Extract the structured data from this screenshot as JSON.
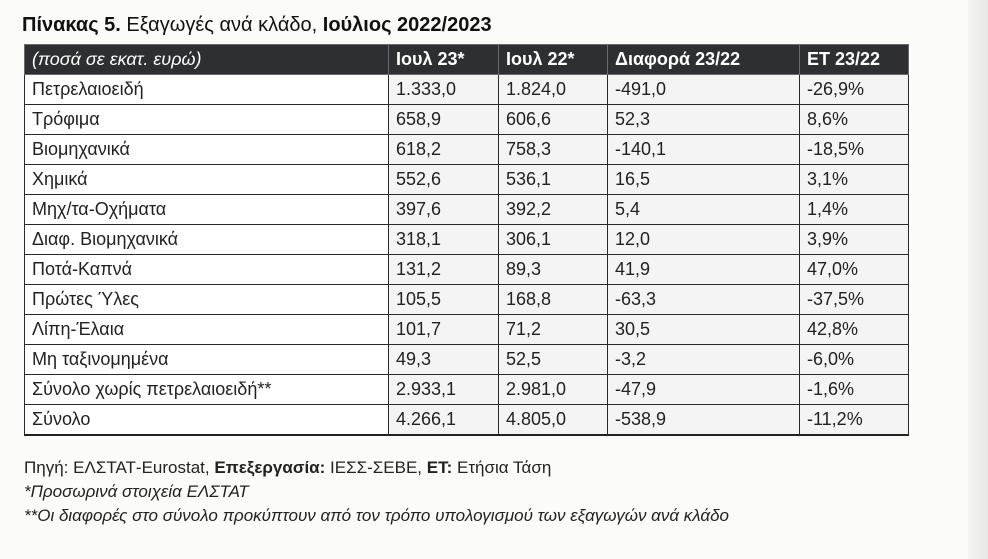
{
  "title": {
    "bold1": "Πίνακας 5.",
    "normal": " Εξαγωγές ανά κλάδο, ",
    "bold2": "Ιούλιος 2022/2023"
  },
  "table": {
    "headers": [
      "(ποσά σε εκατ. ευρώ)",
      "Ιουλ 23*",
      "Ιουλ 22*",
      "Διαφορά 23/22",
      "ΕΤ 23/22"
    ],
    "rows": [
      [
        "Πετρελαιοειδή",
        "1.333,0",
        "1.824,0",
        "-491,0",
        "-26,9%"
      ],
      [
        "Τρόφιμα",
        "658,9",
        "606,6",
        "52,3",
        "8,6%"
      ],
      [
        "Βιομηχανικά",
        "618,2",
        "758,3",
        "-140,1",
        "-18,5%"
      ],
      [
        "Χημικά",
        "552,6",
        "536,1",
        "16,5",
        "3,1%"
      ],
      [
        "Μηχ/τα-Οχήματα",
        "397,6",
        "392,2",
        "5,4",
        "1,4%"
      ],
      [
        "Διαφ. Βιομηχανικά",
        "318,1",
        "306,1",
        "12,0",
        "3,9%"
      ],
      [
        "Ποτά-Καπνά",
        "131,2",
        "89,3",
        "41,9",
        "47,0%"
      ],
      [
        "Πρώτες Ύλες",
        "105,5",
        "168,8",
        "-63,3",
        "-37,5%"
      ],
      [
        "Λίπη-Έλαια",
        "101,7",
        "71,2",
        "30,5",
        "42,8%"
      ],
      [
        "Μη ταξινομημένα",
        "49,3",
        "52,5",
        "-3,2",
        "-6,0%"
      ],
      [
        "Σύνολο χωρίς πετρελαιοειδή**",
        "2.933,1",
        "2.981,0",
        "-47,9",
        "-1,6%"
      ],
      [
        "Σύνολο",
        "4.266,1",
        "4.805,0",
        "-538,9",
        "-11,2%"
      ]
    ]
  },
  "notes": {
    "source_prefix": "Πηγή: ΕΛΣΤΑΤ-Eurostat, ",
    "processing_label": "Επεξεργασία:",
    "processing_value": " ΙΕΣΣ-ΣΕΒΕ, ",
    "et_label": "ΕΤ:",
    "et_value": " Ετήσια Τάση",
    "note1": "*Προσωρινά στοιχεία ΕΛΣΤΑΤ",
    "note2": "**Οι διαφορές στο σύνολο προκύπτουν από τον τρόπο υπολογισμού των εξαγωγών ανά κλάδο"
  }
}
